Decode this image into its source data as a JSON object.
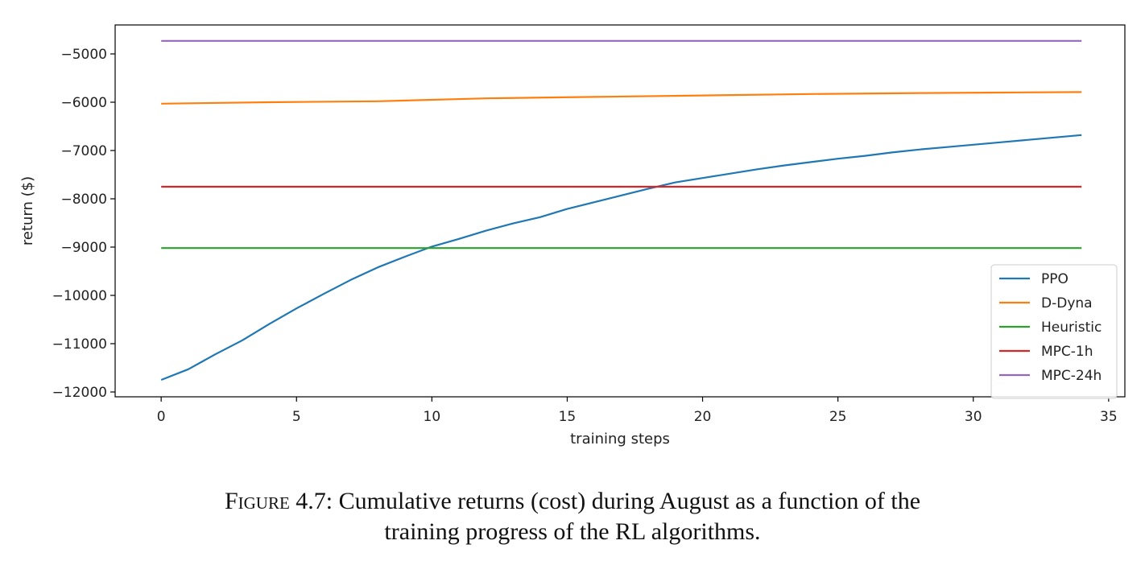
{
  "chart_data": {
    "type": "line",
    "xlabel": "training steps",
    "ylabel": "return  ($)",
    "xlim": [
      -1.7,
      35.6
    ],
    "ylim": [
      -12100,
      -4400
    ],
    "xticks": [
      0,
      5,
      10,
      15,
      20,
      25,
      30,
      35
    ],
    "yticks": [
      -12000,
      -11000,
      -10000,
      -9000,
      -8000,
      -7000,
      -6000,
      -5000
    ],
    "grid": false,
    "legend_position": "lower-right",
    "series": [
      {
        "name": "PPO",
        "color": "#1f77b4",
        "x": [
          0,
          1,
          2,
          3,
          4,
          5,
          6,
          7,
          8,
          9,
          10,
          11,
          12,
          13,
          14,
          15,
          16,
          17,
          18,
          19,
          20,
          21,
          22,
          23,
          24,
          25,
          26,
          27,
          28,
          29,
          30,
          31,
          32,
          33,
          34
        ],
        "y": [
          -11750,
          -11530,
          -11220,
          -10930,
          -10590,
          -10270,
          -9970,
          -9680,
          -9420,
          -9200,
          -8990,
          -8830,
          -8660,
          -8510,
          -8380,
          -8210,
          -8070,
          -7930,
          -7790,
          -7660,
          -7570,
          -7480,
          -7390,
          -7310,
          -7240,
          -7170,
          -7110,
          -7040,
          -6980,
          -6930,
          -6880,
          -6830,
          -6780,
          -6730,
          -6680
        ]
      },
      {
        "name": "D-Dyna",
        "color": "#ff7f0e",
        "x": [
          0,
          4,
          8,
          12,
          16,
          20,
          24,
          28,
          31,
          34
        ],
        "y": [
          -6030,
          -6000,
          -5980,
          -5920,
          -5890,
          -5860,
          -5830,
          -5810,
          -5800,
          -5790
        ]
      },
      {
        "name": "Heuristic",
        "color": "#2ca02c",
        "x": [
          0,
          34
        ],
        "y": [
          -9020,
          -9020
        ]
      },
      {
        "name": "MPC-1h",
        "color": "#d62728",
        "x": [
          0,
          34
        ],
        "y": [
          -7750,
          -7750
        ]
      },
      {
        "name": "MPC-24h",
        "color": "#9467bd",
        "x": [
          0,
          34
        ],
        "y": [
          -4730,
          -4730
        ]
      }
    ]
  },
  "caption": {
    "label": "Figure 4.7:",
    "line1": " Cumulative returns (cost) during August as a function of the",
    "line2": "training progress of the RL algorithms."
  }
}
